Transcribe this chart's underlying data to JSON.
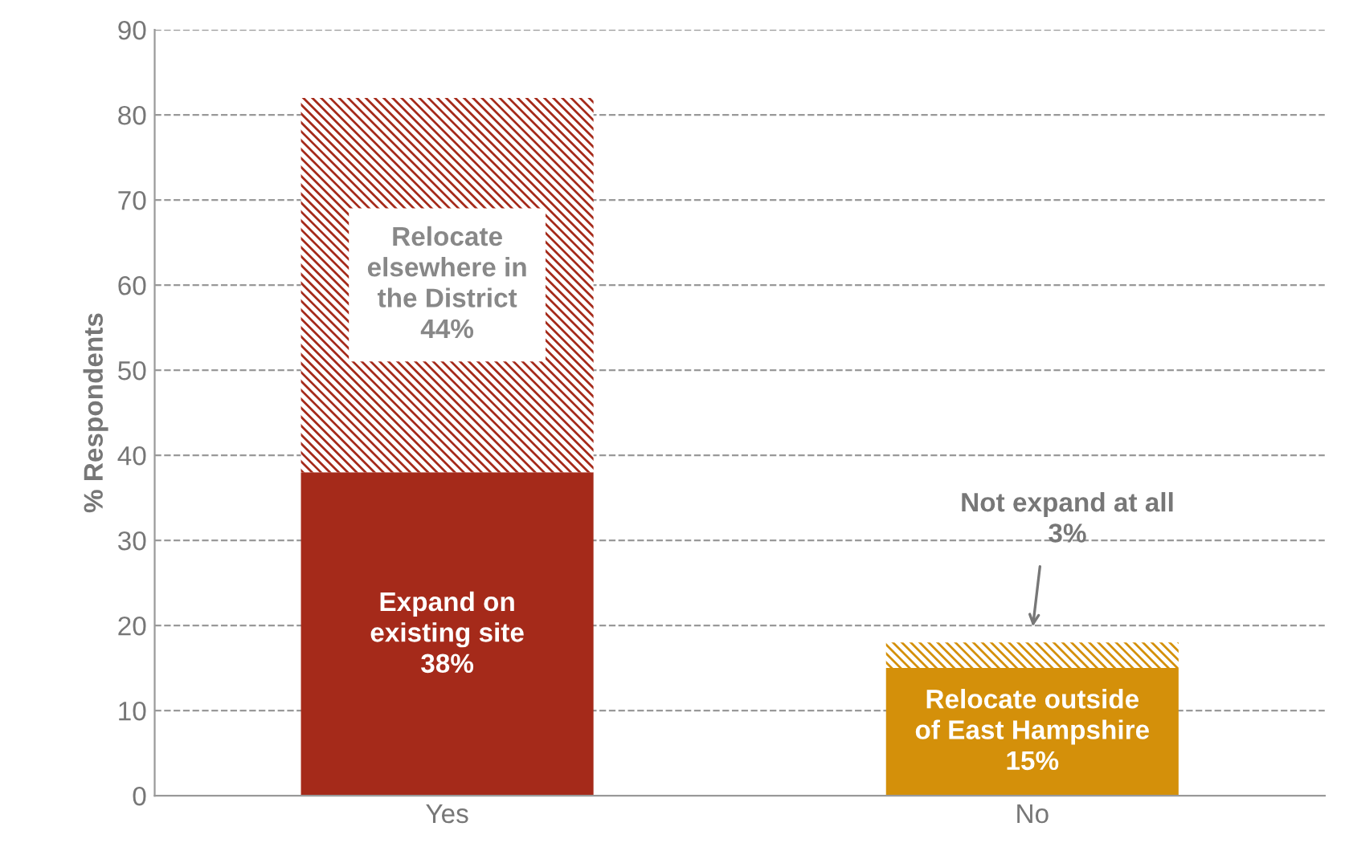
{
  "chart_data": {
    "type": "bar",
    "stacked": true,
    "ylabel": "% Respondents",
    "categories": [
      "Yes",
      "No"
    ],
    "series": [
      {
        "colors": [
          "#a52a1a",
          "#d4900a"
        ],
        "values": [
          38,
          15
        ]
      },
      {
        "colors": [
          "#a52a1a",
          "#d4900a"
        ],
        "values": [
          44,
          3
        ]
      }
    ],
    "ylim": [
      0,
      90
    ],
    "yticks": [
      0,
      10,
      20,
      30,
      40,
      50,
      60,
      70,
      80,
      90
    ],
    "grid": "y",
    "line_style": "dashed",
    "annotations": [
      "Relocate\nelsewhere in\nthe District\n44%",
      "Expand on\nexisting site\n38%",
      "Relocate outside\nof East Hampshire\n15%",
      "Not expand at all\n3%"
    ]
  }
}
